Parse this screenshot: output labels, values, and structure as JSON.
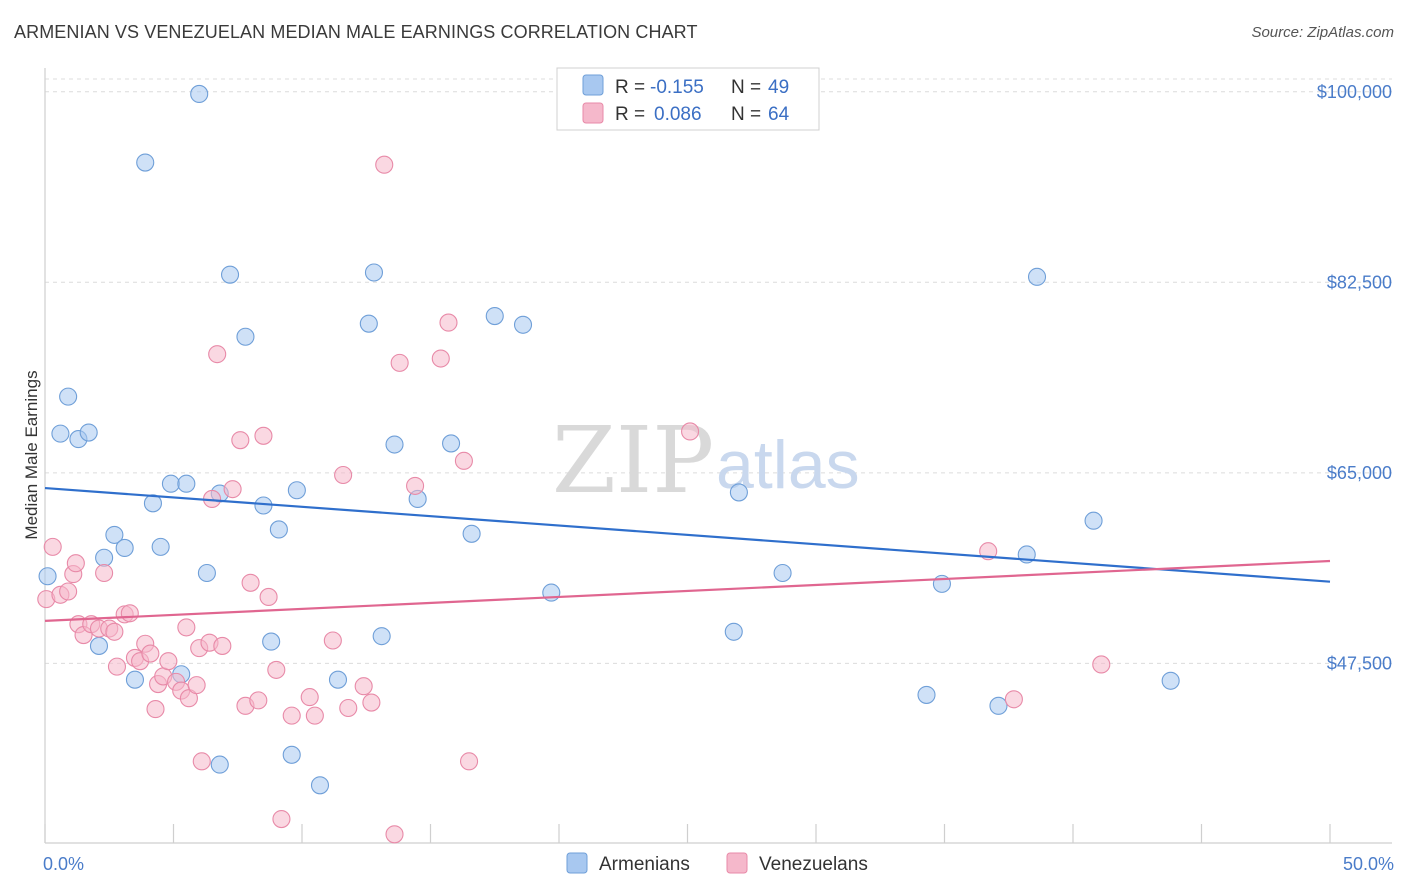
{
  "title": "ARMENIAN VS VENEZUELAN MEDIAN MALE EARNINGS CORRELATION CHART",
  "source": "Source: ZipAtlas.com",
  "watermark": {
    "zip": "ZIP",
    "atlas": "atlas"
  },
  "legend": {
    "rows": [
      {
        "r_label": "R =",
        "r_value": "-0.155",
        "n_label": "N =",
        "n_value": "49",
        "color": "#a8c8f0"
      },
      {
        "r_label": "R =",
        "r_value": "0.086",
        "n_label": "N =",
        "n_value": "64",
        "color": "#f5b8cb"
      }
    ]
  },
  "bottom_legend": [
    "Armenians",
    "Venezuelans"
  ],
  "chart_data": {
    "type": "scatter",
    "title": "ARMENIAN VS VENEZUELAN MEDIAN MALE EARNINGS CORRELATION CHART",
    "xlabel": "",
    "ylabel": "Median Male Earnings",
    "xlim": [
      0,
      50
    ],
    "ylim": [
      31000,
      102000
    ],
    "x_tick_labels": [
      "0.0%",
      "50.0%"
    ],
    "y_ticks": [
      47500,
      65000,
      82500,
      100000
    ],
    "y_tick_labels": [
      "$47,500",
      "$65,000",
      "$82,500",
      "$100,000"
    ],
    "series": [
      {
        "name": "Armenians",
        "color": "#a8c8f0",
        "stroke": "#6f9fd8",
        "trend": {
          "x": [
            0,
            50
          ],
          "y": [
            63600,
            55000
          ],
          "color": "#2f6fcc"
        },
        "points": [
          [
            0.1,
            55500
          ],
          [
            0.6,
            68600
          ],
          [
            0.9,
            72000
          ],
          [
            1.3,
            68100
          ],
          [
            1.7,
            68700
          ],
          [
            2.1,
            49100
          ],
          [
            2.3,
            57200
          ],
          [
            2.7,
            59300
          ],
          [
            3.1,
            58100
          ],
          [
            3.5,
            46000
          ],
          [
            3.9,
            93500
          ],
          [
            4.2,
            62200
          ],
          [
            4.5,
            58200
          ],
          [
            4.9,
            64000
          ],
          [
            5.3,
            46500
          ],
          [
            5.5,
            64000
          ],
          [
            6.0,
            99800
          ],
          [
            6.3,
            55800
          ],
          [
            6.8,
            63100
          ],
          [
            6.8,
            38200
          ],
          [
            7.2,
            83200
          ],
          [
            7.8,
            77500
          ],
          [
            8.5,
            62000
          ],
          [
            8.8,
            49500
          ],
          [
            9.1,
            59800
          ],
          [
            9.6,
            39100
          ],
          [
            9.8,
            63400
          ],
          [
            10.7,
            36300
          ],
          [
            11.4,
            46000
          ],
          [
            12.6,
            78700
          ],
          [
            12.8,
            83400
          ],
          [
            13.1,
            50000
          ],
          [
            13.6,
            67600
          ],
          [
            14.5,
            62600
          ],
          [
            15.8,
            67700
          ],
          [
            16.6,
            59400
          ],
          [
            17.5,
            79400
          ],
          [
            18.6,
            78600
          ],
          [
            19.7,
            54000
          ],
          [
            26.8,
            50400
          ],
          [
            27.0,
            63200
          ],
          [
            28.7,
            55800
          ],
          [
            34.3,
            44600
          ],
          [
            34.9,
            54800
          ],
          [
            37.1,
            43600
          ],
          [
            38.2,
            57500
          ],
          [
            38.6,
            83000
          ],
          [
            40.8,
            60600
          ],
          [
            43.8,
            45900
          ]
        ]
      },
      {
        "name": "Venezuelans",
        "color": "#f5b8cb",
        "stroke": "#e88aa8",
        "trend": {
          "x": [
            0,
            50
          ],
          "y": [
            51400,
            56900
          ],
          "color": "#e06690"
        },
        "points": [
          [
            0.05,
            53400
          ],
          [
            0.3,
            58200
          ],
          [
            0.6,
            53800
          ],
          [
            0.9,
            54100
          ],
          [
            1.1,
            55700
          ],
          [
            1.2,
            56700
          ],
          [
            1.3,
            51100
          ],
          [
            1.5,
            50100
          ],
          [
            1.8,
            51100
          ],
          [
            2.1,
            50700
          ],
          [
            2.3,
            55800
          ],
          [
            2.5,
            50700
          ],
          [
            2.7,
            50400
          ],
          [
            2.8,
            47200
          ],
          [
            3.1,
            52000
          ],
          [
            3.3,
            52100
          ],
          [
            3.5,
            48000
          ],
          [
            3.7,
            47700
          ],
          [
            3.9,
            49300
          ],
          [
            4.1,
            48400
          ],
          [
            4.3,
            43300
          ],
          [
            4.4,
            45600
          ],
          [
            4.6,
            46300
          ],
          [
            4.8,
            47700
          ],
          [
            5.1,
            45800
          ],
          [
            5.3,
            45000
          ],
          [
            5.5,
            50800
          ],
          [
            5.6,
            44300
          ],
          [
            5.9,
            45500
          ],
          [
            6.0,
            48900
          ],
          [
            6.1,
            38500
          ],
          [
            6.4,
            49400
          ],
          [
            6.5,
            62600
          ],
          [
            6.7,
            75900
          ],
          [
            6.9,
            49100
          ],
          [
            7.3,
            63500
          ],
          [
            7.6,
            68000
          ],
          [
            7.8,
            43600
          ],
          [
            8.0,
            54900
          ],
          [
            8.3,
            44100
          ],
          [
            8.5,
            68400
          ],
          [
            8.7,
            53600
          ],
          [
            9.0,
            46900
          ],
          [
            9.2,
            33200
          ],
          [
            9.6,
            42700
          ],
          [
            10.3,
            44400
          ],
          [
            10.5,
            42700
          ],
          [
            11.2,
            49600
          ],
          [
            11.6,
            64800
          ],
          [
            11.8,
            43400
          ],
          [
            12.4,
            45400
          ],
          [
            12.7,
            43900
          ],
          [
            13.2,
            93300
          ],
          [
            13.6,
            31800
          ],
          [
            13.8,
            75100
          ],
          [
            14.4,
            63800
          ],
          [
            15.4,
            75500
          ],
          [
            15.7,
            78800
          ],
          [
            16.3,
            66100
          ],
          [
            16.5,
            38500
          ],
          [
            25.1,
            68800
          ],
          [
            36.7,
            57800
          ],
          [
            37.7,
            44200
          ],
          [
            41.1,
            47400
          ]
        ]
      }
    ]
  }
}
